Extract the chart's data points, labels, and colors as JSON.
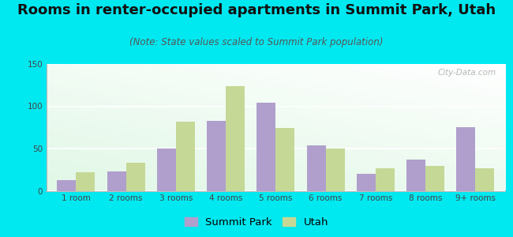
{
  "title": "Rooms in renter-occupied apartments in Summit Park, Utah",
  "subtitle": "(Note: State values scaled to Summit Park population)",
  "categories": [
    "1 room",
    "2 rooms",
    "3 rooms",
    "4 rooms",
    "5 rooms",
    "6 rooms",
    "7 rooms",
    "8 rooms",
    "9+ rooms"
  ],
  "summit_park": [
    13,
    23,
    50,
    83,
    104,
    54,
    20,
    37,
    75
  ],
  "utah": [
    22,
    33,
    82,
    124,
    74,
    50,
    27,
    29,
    27
  ],
  "summit_park_color": "#b09fcc",
  "utah_color": "#c5d896",
  "background_outer": "#00e8f0",
  "ylim": [
    0,
    150
  ],
  "yticks": [
    0,
    50,
    100,
    150
  ],
  "bar_width": 0.38,
  "title_fontsize": 13,
  "subtitle_fontsize": 8.5,
  "tick_fontsize": 7.5,
  "legend_fontsize": 9.5,
  "watermark": "City-Data.com"
}
